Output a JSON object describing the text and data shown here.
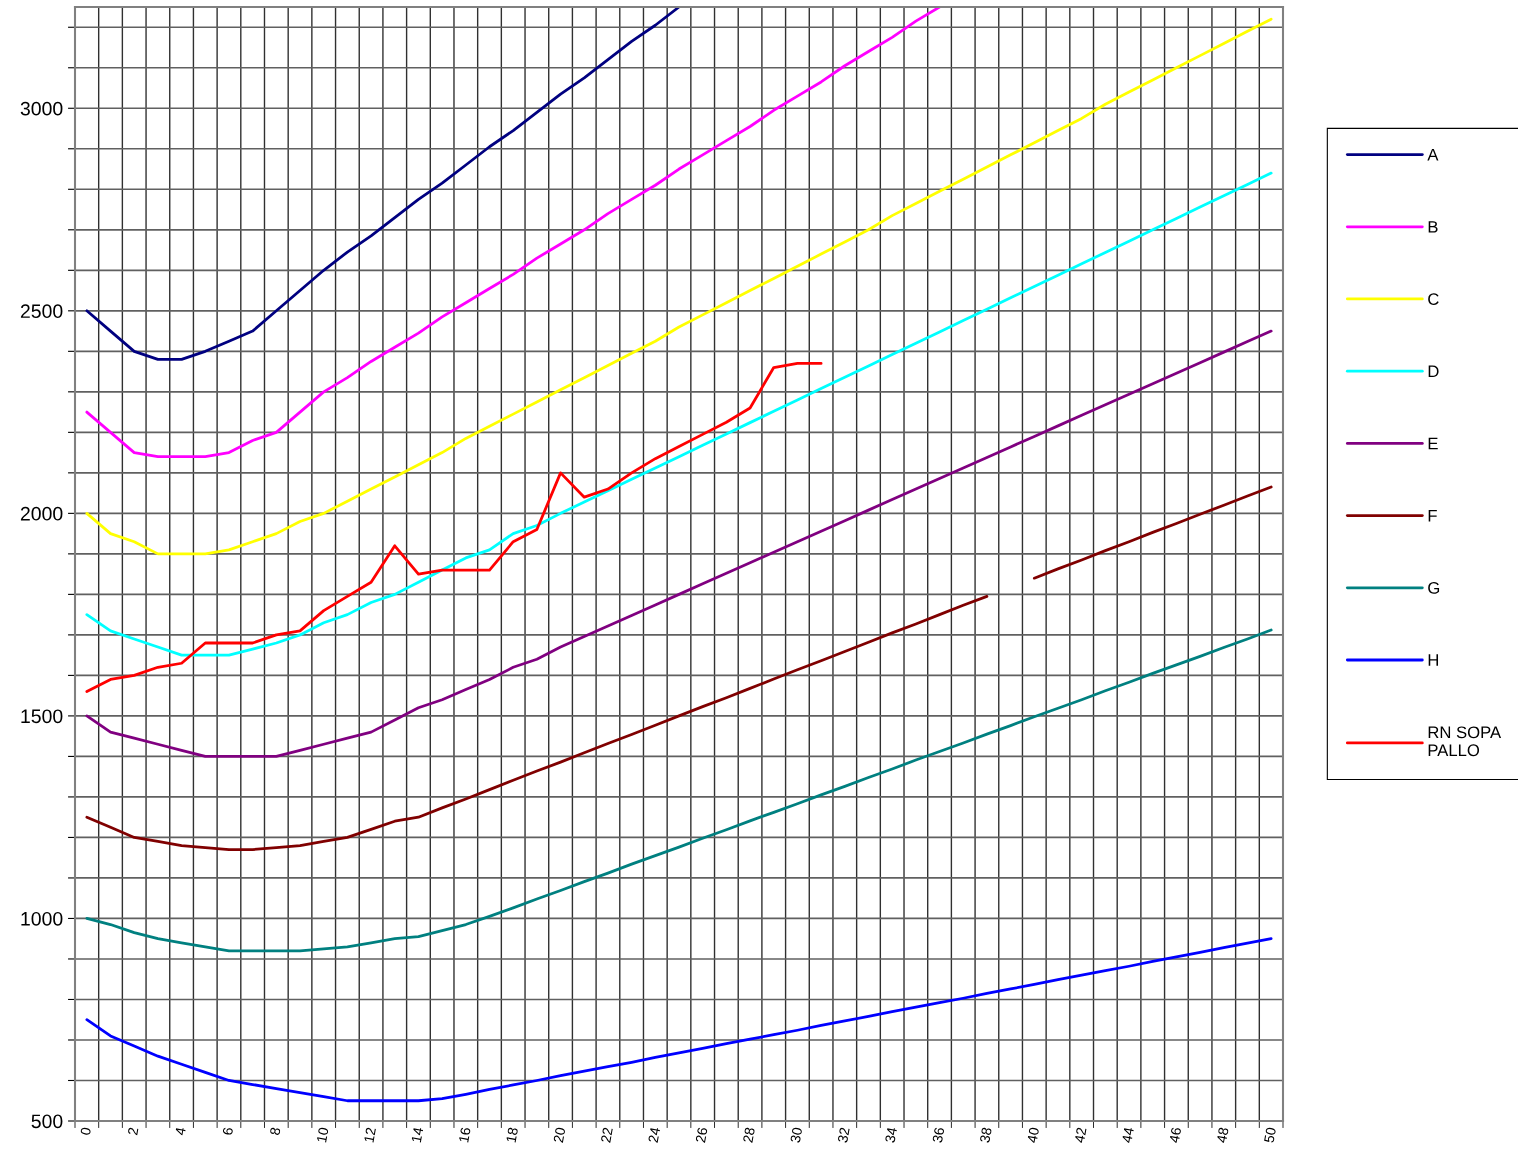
{
  "chart_data": {
    "type": "line",
    "categories": [
      "0",
      null,
      "2",
      null,
      "4",
      null,
      "6",
      null,
      "8",
      null,
      "10",
      null,
      "12",
      null,
      "14",
      null,
      "16",
      null,
      "18",
      null,
      "20",
      null,
      "22",
      null,
      "24",
      null,
      "26",
      null,
      "28",
      null,
      "30",
      null,
      "32",
      null,
      "34",
      null,
      "36",
      null,
      "38",
      null,
      "40",
      null,
      "42",
      null,
      "44",
      null,
      "46",
      null,
      "48",
      null,
      "50"
    ],
    "ylim": [
      500,
      3250
    ],
    "yticks": [
      500,
      {
        "value": 600,
        "label": null
      },
      {
        "value": 700,
        "label": null
      },
      {
        "value": 800,
        "label": null
      },
      {
        "value": 900,
        "label": null
      },
      1000,
      {
        "value": 1100,
        "label": null
      },
      {
        "value": 1200,
        "label": null
      },
      {
        "value": 1300,
        "label": null
      },
      {
        "value": 1400,
        "label": null
      },
      1500,
      {
        "value": 1600,
        "label": null
      },
      {
        "value": 1700,
        "label": null
      },
      {
        "value": 1800,
        "label": null
      },
      {
        "value": 1900,
        "label": null
      },
      2000,
      {
        "value": 2100,
        "label": null
      },
      {
        "value": 2200,
        "label": null
      },
      {
        "value": 2300,
        "label": null
      },
      {
        "value": 2400,
        "label": null
      },
      2500,
      {
        "value": 2600,
        "label": null
      },
      {
        "value": 2700,
        "label": null
      },
      {
        "value": 2800,
        "label": null
      },
      {
        "value": 2900,
        "label": null
      },
      3000,
      {
        "value": 3100,
        "label": null
      },
      {
        "value": 3200,
        "label": null
      }
    ],
    "grid": true,
    "legend": "right",
    "series": [
      {
        "name": "A",
        "color": "#000080",
        "values": [
          2500,
          2450,
          2400,
          2380,
          2380,
          2400,
          2425,
          2450,
          2500,
          2550,
          2600,
          2645,
          2685,
          2730,
          2775,
          2815,
          2860,
          2905,
          2945,
          2990,
          3035,
          3075,
          3120,
          3165,
          3205,
          3250,
          null,
          null,
          null,
          null,
          null,
          null,
          null,
          null,
          null,
          null,
          null,
          null,
          null,
          null,
          null,
          null,
          null,
          null,
          null,
          null,
          null,
          null,
          null,
          null,
          null
        ]
      },
      {
        "name": "B",
        "color": "#ff00ff",
        "values": [
          2250,
          2200,
          2150,
          2140,
          2140,
          2140,
          2150,
          2180,
          2200,
          2250,
          2300,
          2335,
          2375,
          2410,
          2445,
          2485,
          2520,
          2555,
          2590,
          2630,
          2665,
          2700,
          2740,
          2775,
          2810,
          2850,
          2885,
          2920,
          2955,
          2995,
          3030,
          3065,
          3105,
          3140,
          3175,
          3215,
          3250,
          null,
          null,
          null,
          null,
          null,
          null,
          null,
          null,
          null,
          null,
          null,
          null,
          null,
          null
        ]
      },
      {
        "name": "C",
        "color": "#ffff00",
        "values": [
          2000,
          1950,
          1930,
          1900,
          1900,
          1900,
          1910,
          1930,
          1950,
          1980,
          2000,
          2030,
          2060,
          2090,
          2120,
          2150,
          2185,
          2215,
          2245,
          2275,
          2305,
          2335,
          2365,
          2395,
          2425,
          2460,
          2490,
          2520,
          2550,
          2580,
          2610,
          2640,
          2670,
          2700,
          2735,
          2765,
          2795,
          2825,
          2855,
          2885,
          2915,
          2945,
          2975,
          3010,
          3040,
          3070,
          3100,
          3130,
          3160,
          3190,
          3220
        ]
      },
      {
        "name": "D",
        "color": "#00ffff",
        "values": [
          1750,
          1710,
          1690,
          1670,
          1650,
          1650,
          1650,
          1665,
          1680,
          1700,
          1730,
          1750,
          1780,
          1800,
          1830,
          1860,
          1890,
          1910,
          1950,
          1970,
          2000,
          2028,
          2056,
          2084,
          2112,
          2140,
          2168,
          2196,
          2224,
          2252,
          2280,
          2308,
          2336,
          2364,
          2392,
          2420,
          2448,
          2476,
          2504,
          2532,
          2560,
          2588,
          2616,
          2644,
          2672,
          2700,
          2728,
          2756,
          2784,
          2812,
          2840
        ]
      },
      {
        "name": "E",
        "color": "#800080",
        "values": [
          1500,
          1460,
          1445,
          1430,
          1415,
          1400,
          1400,
          1400,
          1400,
          1415,
          1430,
          1445,
          1460,
          1490,
          1520,
          1540,
          1565,
          1590,
          1620,
          1640,
          1670,
          1696,
          1722,
          1748,
          1774,
          1800,
          1826,
          1852,
          1878,
          1904,
          1930,
          1956,
          1982,
          2008,
          2034,
          2060,
          2086,
          2112,
          2138,
          2164,
          2190,
          2216,
          2242,
          2268,
          2294,
          2320,
          2346,
          2372,
          2398,
          2424,
          2450
        ]
      },
      {
        "name": "F",
        "color": "#800000",
        "values": [
          1250,
          1225,
          1200,
          1190,
          1180,
          1175,
          1170,
          1170,
          1175,
          1180,
          1190,
          1200,
          1220,
          1240,
          1250,
          1273,
          1295,
          1318,
          1341,
          1364,
          1386,
          1409,
          1432,
          1454,
          1477,
          1500,
          1523,
          1545,
          1568,
          1591,
          1614,
          1636,
          1659,
          1682,
          1705,
          1727,
          1750,
          1773,
          1795,
          null,
          1840,
          1863,
          1885,
          1908,
          1930,
          1953,
          1975,
          1998,
          2020,
          2043,
          2065
        ]
      },
      {
        "name": "G",
        "color": "#008080",
        "values": [
          1000,
          985,
          965,
          950,
          940,
          930,
          920,
          920,
          920,
          920,
          925,
          930,
          940,
          950,
          955,
          970,
          985,
          1005,
          1026,
          1048,
          1069,
          1091,
          1112,
          1134,
          1155,
          1176,
          1198,
          1219,
          1241,
          1262,
          1283,
          1305,
          1326,
          1348,
          1369,
          1391,
          1412,
          1433,
          1455,
          1476,
          1498,
          1519,
          1540,
          1562,
          1583,
          1605,
          1626,
          1647,
          1669,
          1690,
          1712
        ]
      },
      {
        "name": "H",
        "color": "#0000ff",
        "values": [
          750,
          710,
          685,
          660,
          640,
          620,
          600,
          590,
          580,
          570,
          560,
          550,
          550,
          550,
          550,
          555,
          566,
          578,
          589,
          600,
          612,
          623,
          634,
          645,
          657,
          668,
          679,
          691,
          702,
          713,
          724,
          736,
          747,
          758,
          770,
          781,
          792,
          803,
          815,
          826,
          837,
          849,
          860,
          871,
          882,
          894,
          905,
          916,
          928,
          939,
          950
        ]
      },
      {
        "name": "RN SOPA PALLO",
        "color": "#ff0000",
        "values": [
          1560,
          1590,
          1600,
          1620,
          1630,
          1680,
          1680,
          1680,
          1700,
          1710,
          1760,
          1795,
          1830,
          1920,
          1850,
          1860,
          1860,
          1860,
          1930,
          1960,
          2100,
          2040,
          2060,
          2100,
          2135,
          2165,
          2195,
          2225,
          2260,
          2360,
          2370,
          2370,
          null,
          null,
          null,
          null,
          null,
          null,
          null,
          null,
          null,
          null,
          null,
          null,
          null,
          null,
          null,
          null,
          null,
          null,
          null
        ]
      }
    ]
  }
}
